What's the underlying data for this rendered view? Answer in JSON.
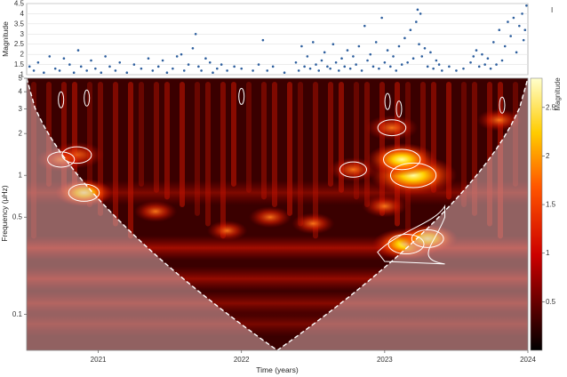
{
  "chart_data": [
    {
      "type": "scatter",
      "ylabel": "Magnitude",
      "ylim": [
        1,
        4.5
      ],
      "yticks": [
        "1",
        "1.5",
        "2",
        "2.5",
        "3",
        "3.5",
        "4",
        "4.5"
      ],
      "yticks_values": [
        1,
        1.5,
        2,
        2.5,
        3,
        3.5,
        4,
        4.5
      ],
      "marker_color": "#2e5f9e",
      "grid": true,
      "x_range": [
        2020.5,
        2024.0
      ],
      "points_note": "dense earthquake catalog; representative sample of visible points",
      "points": [
        [
          2020.52,
          1.4
        ],
        [
          2020.55,
          1.2
        ],
        [
          2020.58,
          1.6
        ],
        [
          2020.62,
          1.1
        ],
        [
          2020.66,
          1.9
        ],
        [
          2020.7,
          1.3
        ],
        [
          2020.73,
          1.2
        ],
        [
          2020.76,
          1.8
        ],
        [
          2020.8,
          1.5
        ],
        [
          2020.83,
          1.1
        ],
        [
          2020.86,
          2.2
        ],
        [
          2020.88,
          1.4
        ],
        [
          2020.92,
          1.2
        ],
        [
          2020.95,
          1.7
        ],
        [
          2020.98,
          1.3
        ],
        [
          2021.02,
          1.1
        ],
        [
          2021.05,
          1.9
        ],
        [
          2021.08,
          1.4
        ],
        [
          2021.12,
          1.2
        ],
        [
          2021.15,
          1.6
        ],
        [
          2021.2,
          1.1
        ],
        [
          2021.25,
          1.5
        ],
        [
          2021.3,
          1.3
        ],
        [
          2021.35,
          1.8
        ],
        [
          2021.38,
          1.2
        ],
        [
          2021.42,
          1.4
        ],
        [
          2021.45,
          1.7
        ],
        [
          2021.48,
          1.1
        ],
        [
          2021.52,
          1.3
        ],
        [
          2021.55,
          1.9
        ],
        [
          2021.58,
          2.0
        ],
        [
          2021.6,
          1.2
        ],
        [
          2021.63,
          1.5
        ],
        [
          2021.66,
          2.3
        ],
        [
          2021.68,
          3.0
        ],
        [
          2021.7,
          1.4
        ],
        [
          2021.72,
          1.2
        ],
        [
          2021.75,
          1.8
        ],
        [
          2021.78,
          1.6
        ],
        [
          2021.8,
          1.1
        ],
        [
          2021.83,
          1.3
        ],
        [
          2021.86,
          1.5
        ],
        [
          2021.9,
          1.2
        ],
        [
          2021.95,
          1.4
        ],
        [
          2022.0,
          1.3
        ],
        [
          2022.08,
          1.2
        ],
        [
          2022.12,
          1.5
        ],
        [
          2022.15,
          2.7
        ],
        [
          2022.18,
          1.2
        ],
        [
          2022.22,
          1.4
        ],
        [
          2022.3,
          1.1
        ],
        [
          2022.38,
          1.6
        ],
        [
          2022.4,
          1.2
        ],
        [
          2022.42,
          2.4
        ],
        [
          2022.44,
          1.4
        ],
        [
          2022.46,
          1.9
        ],
        [
          2022.48,
          1.3
        ],
        [
          2022.5,
          2.6
        ],
        [
          2022.52,
          1.5
        ],
        [
          2022.54,
          1.2
        ],
        [
          2022.56,
          1.7
        ],
        [
          2022.58,
          2.1
        ],
        [
          2022.6,
          1.4
        ],
        [
          2022.62,
          1.3
        ],
        [
          2022.64,
          2.5
        ],
        [
          2022.66,
          1.6
        ],
        [
          2022.68,
          1.2
        ],
        [
          2022.7,
          1.8
        ],
        [
          2022.72,
          1.4
        ],
        [
          2022.74,
          2.2
        ],
        [
          2022.76,
          1.3
        ],
        [
          2022.78,
          1.9
        ],
        [
          2022.8,
          1.5
        ],
        [
          2022.82,
          2.4
        ],
        [
          2022.84,
          1.2
        ],
        [
          2022.86,
          3.4
        ],
        [
          2022.88,
          1.7
        ],
        [
          2022.9,
          2.0
        ],
        [
          2022.92,
          1.4
        ],
        [
          2022.94,
          2.6
        ],
        [
          2022.96,
          1.3
        ],
        [
          2022.98,
          3.8
        ],
        [
          2023.0,
          1.6
        ],
        [
          2023.02,
          2.2
        ],
        [
          2023.04,
          1.4
        ],
        [
          2023.06,
          1.9
        ],
        [
          2023.08,
          1.2
        ],
        [
          2023.1,
          2.4
        ],
        [
          2023.12,
          1.5
        ],
        [
          2023.14,
          2.8
        ],
        [
          2023.16,
          1.6
        ],
        [
          2023.18,
          3.2
        ],
        [
          2023.2,
          1.8
        ],
        [
          2023.22,
          3.6
        ],
        [
          2023.23,
          4.2
        ],
        [
          2023.24,
          2.5
        ],
        [
          2023.25,
          4.0
        ],
        [
          2023.26,
          1.9
        ],
        [
          2023.28,
          2.3
        ],
        [
          2023.3,
          1.4
        ],
        [
          2023.32,
          2.1
        ],
        [
          2023.34,
          1.3
        ],
        [
          2023.36,
          1.7
        ],
        [
          2023.38,
          1.5
        ],
        [
          2023.4,
          1.2
        ],
        [
          2023.45,
          1.4
        ],
        [
          2023.5,
          1.2
        ],
        [
          2023.55,
          1.3
        ],
        [
          2023.6,
          1.6
        ],
        [
          2023.62,
          1.9
        ],
        [
          2023.64,
          2.2
        ],
        [
          2023.66,
          1.4
        ],
        [
          2023.68,
          2.0
        ],
        [
          2023.7,
          1.5
        ],
        [
          2023.72,
          1.8
        ],
        [
          2023.74,
          1.3
        ],
        [
          2023.76,
          2.6
        ],
        [
          2023.78,
          1.5
        ],
        [
          2023.8,
          3.2
        ],
        [
          2023.82,
          1.7
        ],
        [
          2023.84,
          2.4
        ],
        [
          2023.86,
          3.6
        ],
        [
          2023.88,
          2.9
        ],
        [
          2023.9,
          3.8
        ],
        [
          2023.92,
          2.1
        ],
        [
          2023.94,
          3.4
        ],
        [
          2023.96,
          4.0
        ],
        [
          2023.97,
          2.7
        ],
        [
          2023.98,
          3.2
        ],
        [
          2023.99,
          4.4
        ]
      ]
    },
    {
      "type": "heatmap",
      "xlabel": "Time (years)",
      "ylabel": "Frequency (μHz)",
      "x_range": [
        2020.5,
        2024.0
      ],
      "x_ticks": [
        "2021",
        "2022",
        "2023",
        "2024"
      ],
      "x_ticks_values": [
        2021,
        2022,
        2023,
        2024
      ],
      "y_scale": "log",
      "y_range": [
        0.055,
        5
      ],
      "y_ticks": [
        "0.1",
        "0.5",
        "1",
        "2",
        "3",
        "4",
        "5"
      ],
      "y_ticks_values": [
        0.1,
        0.5,
        1,
        2,
        3,
        4,
        5
      ],
      "colorbar": {
        "label": "Magnitude",
        "range": [
          0,
          2.8
        ],
        "ticks": [
          "0.5",
          "1",
          "1.5",
          "2",
          "2.5"
        ],
        "ticks_values": [
          0.5,
          1,
          1.5,
          2,
          2.5
        ],
        "colormap": "hot"
      },
      "cone_of_influence": true,
      "hotspots_note": "approximate high-power regions (time, frequency, magnitude)",
      "hotspots": [
        [
          2023.2,
          1.0,
          2.8
        ],
        [
          2023.12,
          1.3,
          2.1
        ],
        [
          2023.15,
          0.32,
          2.0
        ],
        [
          2023.3,
          0.35,
          1.7
        ],
        [
          2020.9,
          0.75,
          1.6
        ],
        [
          2020.85,
          1.4,
          1.5
        ],
        [
          2020.74,
          1.3,
          1.3
        ],
        [
          2022.78,
          1.1,
          1.3
        ],
        [
          2023.0,
          0.6,
          1.1
        ],
        [
          2023.05,
          2.2,
          1.4
        ],
        [
          2023.8,
          2.5,
          1.1
        ],
        [
          2021.4,
          0.55,
          1.0
        ],
        [
          2022.2,
          0.5,
          1.0
        ],
        [
          2021.9,
          0.4,
          0.9
        ],
        [
          2022.5,
          0.45,
          1.0
        ]
      ],
      "bands_note": "horizontal power bands (frequency, magnitude)",
      "bands": [
        [
          0.3,
          0.75
        ],
        [
          0.18,
          0.65
        ],
        [
          0.12,
          0.55
        ],
        [
          0.75,
          0.5
        ],
        [
          0.085,
          0.45
        ]
      ]
    }
  ]
}
